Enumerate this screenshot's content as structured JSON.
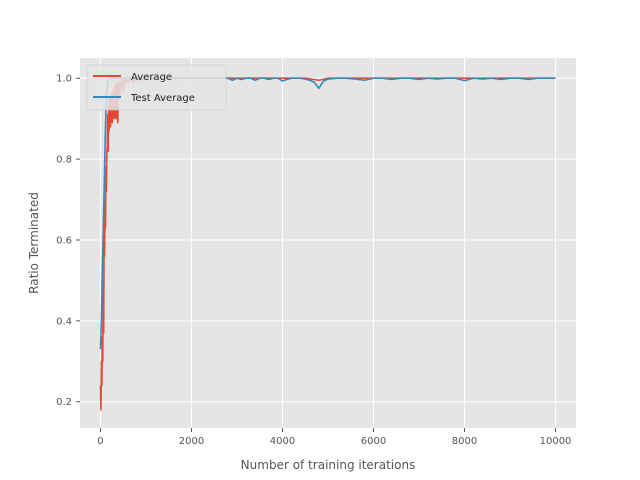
{
  "chart_data": {
    "type": "line",
    "title": "",
    "xlabel": "Number of training iterations",
    "ylabel": "Ratio Terminated",
    "xlim": [
      -450,
      10450
    ],
    "ylim": [
      0.135,
      1.05
    ],
    "xticks": [
      0,
      2000,
      4000,
      6000,
      8000,
      10000
    ],
    "yticks": [
      0.2,
      0.4,
      0.6,
      0.8,
      1.0
    ],
    "xtick_labels": [
      "0",
      "2000",
      "4000",
      "6000",
      "8000",
      "10000"
    ],
    "ytick_labels": [
      "0.2",
      "0.4",
      "0.6",
      "0.8",
      "1.0"
    ],
    "grid": true,
    "legend_position": "upper-left",
    "colors": {
      "plot_background": "#e5e5e5",
      "grid": "#ffffff",
      "Average": "#e24a33",
      "Test Average": "#348abd"
    },
    "series": [
      {
        "name": "Average",
        "x": [
          0,
          10,
          20,
          30,
          40,
          50,
          60,
          70,
          80,
          90,
          100,
          110,
          120,
          130,
          140,
          150,
          160,
          170,
          180,
          190,
          200,
          220,
          240,
          260,
          280,
          300,
          320,
          340,
          360,
          380,
          400,
          420,
          440,
          460,
          480,
          500,
          550,
          600,
          650,
          700,
          800,
          900,
          1000,
          1200,
          1500,
          2000,
          2500,
          3000,
          3500,
          4000,
          4500,
          4800,
          5000,
          6000,
          7000,
          8000,
          9000,
          10000
        ],
        "y": [
          0.24,
          0.18,
          0.3,
          0.24,
          0.36,
          0.3,
          0.5,
          0.37,
          0.62,
          0.56,
          0.7,
          0.63,
          0.78,
          0.72,
          0.82,
          0.83,
          0.91,
          0.82,
          0.93,
          0.87,
          0.95,
          0.88,
          0.96,
          0.89,
          0.97,
          0.9,
          0.98,
          0.9,
          0.99,
          0.89,
          0.99,
          0.95,
          0.99,
          0.98,
          1.0,
          0.97,
          1.0,
          0.99,
          1.0,
          0.99,
          1.0,
          0.995,
          1.0,
          1.0,
          1.0,
          1.0,
          1.0,
          1.0,
          1.0,
          1.0,
          1.0,
          0.995,
          1.0,
          1.0,
          1.0,
          1.0,
          1.0,
          1.0
        ]
      },
      {
        "name": "Test Average",
        "x": [
          0,
          20,
          40,
          60,
          80,
          100,
          120,
          140,
          160,
          180,
          200,
          250,
          300,
          400,
          500,
          600,
          800,
          1000,
          1200,
          1500,
          1800,
          2000,
          2200,
          2500,
          2800,
          2900,
          3000,
          3100,
          3200,
          3300,
          3400,
          3500,
          3600,
          3700,
          3800,
          3900,
          4000,
          4100,
          4200,
          4400,
          4600,
          4700,
          4800,
          4900,
          5000,
          5200,
          5400,
          5600,
          5800,
          6000,
          6200,
          6400,
          6600,
          6800,
          7000,
          7200,
          7400,
          7600,
          7800,
          8000,
          8200,
          8400,
          8600,
          8800,
          9000,
          9200,
          9400,
          9600,
          9800,
          10000
        ],
        "y": [
          0.33,
          0.4,
          0.52,
          0.62,
          0.72,
          0.83,
          0.92,
          0.97,
          0.99,
          1.0,
          1.0,
          1.0,
          1.0,
          1.0,
          1.0,
          1.0,
          1.0,
          1.0,
          1.0,
          1.0,
          1.0,
          1.0,
          1.0,
          1.0,
          1.0,
          0.995,
          1.0,
          0.997,
          1.0,
          1.0,
          0.995,
          1.0,
          1.0,
          0.997,
          1.0,
          1.0,
          0.993,
          0.997,
          1.0,
          1.0,
          0.995,
          0.99,
          0.975,
          0.993,
          0.998,
          1.0,
          1.0,
          0.998,
          0.995,
          1.0,
          1.0,
          0.997,
          1.0,
          1.0,
          0.997,
          1.0,
          0.998,
          1.0,
          1.0,
          0.994,
          1.0,
          0.998,
          1.0,
          0.997,
          1.0,
          1.0,
          0.997,
          1.0,
          1.0,
          1.0
        ]
      }
    ]
  }
}
